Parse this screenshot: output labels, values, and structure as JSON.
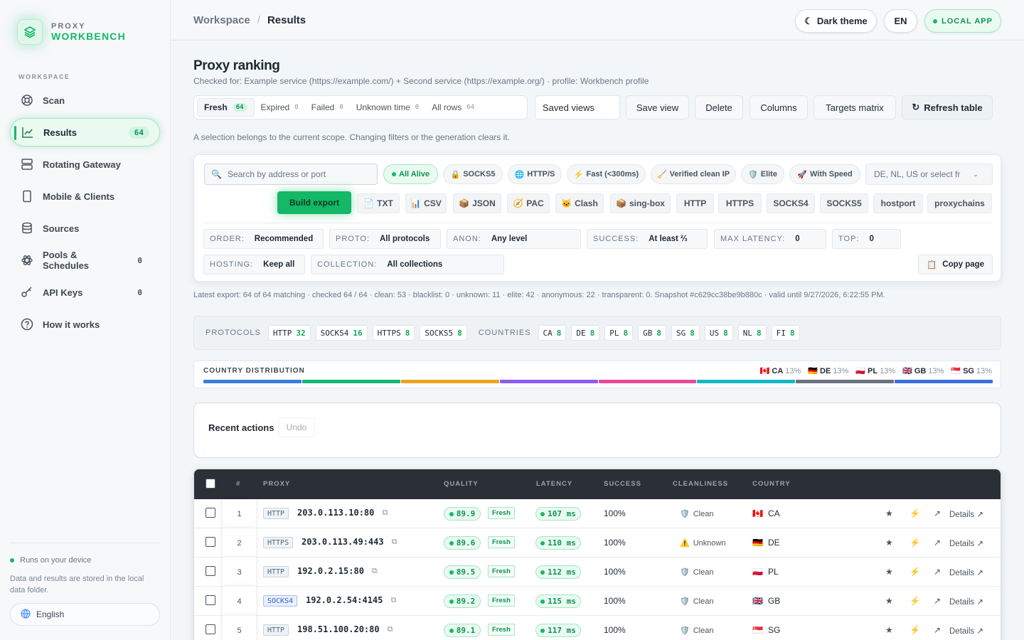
{
  "brand": {
    "line1": "PROXY",
    "line2": "WORKBENCH"
  },
  "sidebar": {
    "section": "WORKSPACE",
    "items": [
      {
        "label": "Scan",
        "count": ""
      },
      {
        "label": "Results",
        "count": "64"
      },
      {
        "label": "Rotating Gateway",
        "count": ""
      },
      {
        "label": "Mobile & Clients",
        "count": ""
      },
      {
        "label": "Sources",
        "count": ""
      },
      {
        "label": "Pools & Schedules",
        "count": "0"
      },
      {
        "label": "API Keys",
        "count": "0"
      },
      {
        "label": "How it works",
        "count": ""
      }
    ],
    "footer_status": "Runs on your device",
    "footer_note": "Data and results are stored in the local data folder.",
    "language": "English"
  },
  "topbar": {
    "crumb_root": "Workspace",
    "crumb_sep": "/",
    "crumb_current": "Results",
    "theme_btn": "Dark theme",
    "lang_btn": "EN",
    "app_badge": "LOCAL APP"
  },
  "page": {
    "title": "Proxy ranking",
    "subtitle": "Checked for: Example service (https://example.com/) + Second service (https://example.org/) · profile: Workbench profile",
    "tabs": [
      {
        "label": "Fresh",
        "count": "64"
      },
      {
        "label": "Expired",
        "count": "0"
      },
      {
        "label": "Failed",
        "count": "0"
      },
      {
        "label": "Unknown time",
        "count": "0"
      },
      {
        "label": "All rows",
        "count": "64"
      }
    ],
    "saved_views": "Saved views",
    "save_view": "Save view",
    "delete": "Delete",
    "columns": "Columns",
    "targets_matrix": "Targets matrix",
    "refresh": "Refresh table",
    "selection_note": "A selection belongs to the current scope. Changing filters or the generation clears it."
  },
  "filters": {
    "search_placeholder": "Search by address or port",
    "chips": [
      "All Alive",
      "SOCKS5",
      "HTTP/S",
      "Fast (<300ms)",
      "Verified clean IP",
      "Elite",
      "With Speed"
    ],
    "country_select": "DE, NL, US or select fr",
    "build_export": "Build export",
    "formats": [
      "TXT",
      "CSV",
      "JSON",
      "PAC",
      "Clash",
      "sing-box",
      "HTTP",
      "HTTPS",
      "SOCKS4",
      "SOCKS5",
      "hostport",
      "proxychains"
    ],
    "order": {
      "k": "ORDER:",
      "v": "Recommended"
    },
    "proto": {
      "k": "PROTO:",
      "v": "All protocols"
    },
    "anon": {
      "k": "ANON:",
      "v": "Any level"
    },
    "success": {
      "k": "SUCCESS:",
      "v": "At least ⅔"
    },
    "max_latency": {
      "k": "MAX LATENCY:",
      "v": "0"
    },
    "top": {
      "k": "TOP:",
      "v": "0"
    },
    "hosting": {
      "k": "HOSTING:",
      "v": "Keep all"
    },
    "collection": {
      "k": "COLLECTION:",
      "v": "All collections"
    },
    "copy_page": "Copy page"
  },
  "latest_export": "Latest export: 64 of 64 matching · checked 64 / 64 · clean: 53 · blacklist: 0 · unknown: 11 · elite: 42 · anonymous: 22 · transparent: 0. Snapshot #c629cc38be9b880c · valid until 9/27/2026, 6:22:55 PM.",
  "summary": {
    "protocols_label": "PROTOCOLS",
    "protocols": [
      {
        "k": "HTTP",
        "v": "32"
      },
      {
        "k": "SOCKS4",
        "v": "16"
      },
      {
        "k": "HTTPS",
        "v": "8"
      },
      {
        "k": "SOCKS5",
        "v": "8"
      }
    ],
    "countries_label": "COUNTRIES",
    "countries": [
      {
        "k": "CA",
        "v": "8"
      },
      {
        "k": "DE",
        "v": "8"
      },
      {
        "k": "PL",
        "v": "8"
      },
      {
        "k": "GB",
        "v": "8"
      },
      {
        "k": "SG",
        "v": "8"
      },
      {
        "k": "US",
        "v": "8"
      },
      {
        "k": "NL",
        "v": "8"
      },
      {
        "k": "FI",
        "v": "8"
      }
    ]
  },
  "distribution": {
    "title": "COUNTRY DISTRIBUTION",
    "legend": [
      {
        "code": "CA",
        "pct": "13%"
      },
      {
        "code": "DE",
        "pct": "13%"
      },
      {
        "code": "PL",
        "pct": "13%"
      },
      {
        "code": "GB",
        "pct": "13%"
      },
      {
        "code": "SG",
        "pct": "13%"
      }
    ],
    "segment_colors": [
      "#3b7ddd",
      "#14b87a",
      "#f0a21f",
      "#8b5cf6",
      "#ec4899",
      "#14b8c6",
      "#6b7280",
      "#3b6fe0"
    ]
  },
  "recent": {
    "title": "Recent actions",
    "undo": "Undo"
  },
  "table": {
    "headers": {
      "num": "#",
      "proxy": "PROXY",
      "quality": "QUALITY",
      "latency": "LATENCY",
      "success": "SUCCESS",
      "cleanliness": "CLEANLINESS",
      "country": "COUNTRY"
    },
    "rows": [
      {
        "num": "1",
        "proto": "HTTP",
        "addr": "203.0.113.10:80",
        "quality": "89.9",
        "age": "Fresh",
        "latency": "107 ms",
        "success": "100%",
        "clean_icon": "🛡️",
        "clean": "Clean",
        "flag": "🇨🇦",
        "country": "CA",
        "details": "Details ↗"
      },
      {
        "num": "2",
        "proto": "HTTPS",
        "addr": "203.0.113.49:443",
        "quality": "89.6",
        "age": "Fresh",
        "latency": "110 ms",
        "success": "100%",
        "clean_icon": "⚠️",
        "clean": "Unknown",
        "flag": "🇩🇪",
        "country": "DE",
        "details": "Details ↗"
      },
      {
        "num": "3",
        "proto": "HTTP",
        "addr": "192.0.2.15:80",
        "quality": "89.5",
        "age": "Fresh",
        "latency": "112 ms",
        "success": "100%",
        "clean_icon": "🛡️",
        "clean": "Clean",
        "flag": "🇵🇱",
        "country": "PL",
        "details": "Details ↗"
      },
      {
        "num": "4",
        "proto": "SOCKS4",
        "addr": "192.0.2.54:4145",
        "quality": "89.2",
        "age": "Fresh",
        "latency": "115 ms",
        "success": "100%",
        "clean_icon": "🛡️",
        "clean": "Clean",
        "flag": "🇬🇧",
        "country": "GB",
        "details": "Details ↗"
      },
      {
        "num": "5",
        "proto": "HTTP",
        "addr": "198.51.100.20:80",
        "quality": "89.1",
        "age": "Fresh",
        "latency": "117 ms",
        "success": "100%",
        "clean_icon": "🛡️",
        "clean": "Clean",
        "flag": "🇸🇬",
        "country": "SG",
        "details": "Details ↗"
      }
    ]
  }
}
